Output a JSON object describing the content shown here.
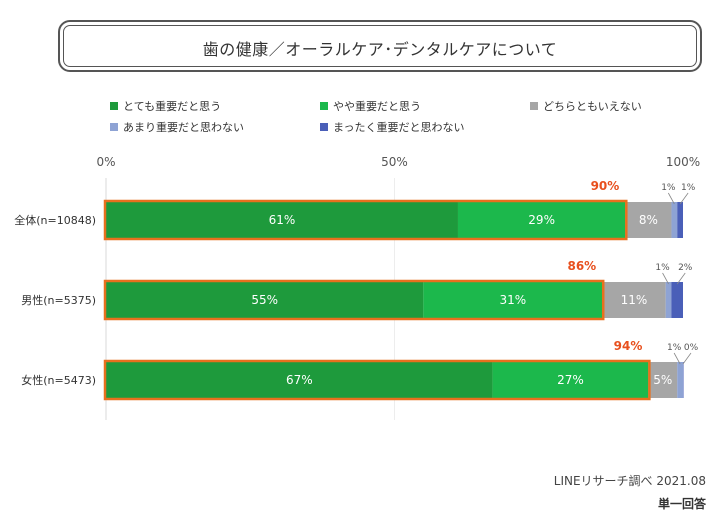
{
  "title": "歯の健康／オーラルケア･デンタルケアについて",
  "source": "LINEリサーチ調べ 2021.08",
  "note": "単一回答",
  "chart_data": {
    "type": "bar",
    "orientation": "horizontal",
    "stacked": true,
    "xlim": [
      0,
      100
    ],
    "x_ticks": [
      "0%",
      "50%",
      "100%"
    ],
    "categories": [
      "全体(n=10848)",
      "男性(n=5375)",
      "女性(n=5473)"
    ],
    "series": [
      {
        "name": "とても重要だと思う",
        "color": "#1e9a3c",
        "values": [
          61,
          55,
          67
        ],
        "labels": [
          "61%",
          "55%",
          "67%"
        ]
      },
      {
        "name": "やや重要だと思う",
        "color": "#1cb84c",
        "values": [
          29,
          31,
          27
        ],
        "labels": [
          "29%",
          "31%",
          "27%"
        ]
      },
      {
        "name": "どちらともいえない",
        "color": "#a6a6a6",
        "values": [
          8,
          11,
          5
        ],
        "labels": [
          "8%",
          "11%",
          "5%"
        ]
      },
      {
        "name": "あまり重要だと思わない",
        "color": "#8ea3d4",
        "values": [
          1,
          1,
          1
        ],
        "labels": [
          "1%",
          "1%",
          "1%"
        ]
      },
      {
        "name": "まったく重要だと思わない",
        "color": "#4a5fb8",
        "values": [
          1,
          2,
          0
        ],
        "labels": [
          "1%",
          "2%",
          "0%"
        ]
      }
    ],
    "totals": {
      "label_values": [
        "90%",
        "86%",
        "94%"
      ],
      "color": "#e8501e",
      "highlight_color": "#e8701e"
    },
    "legend_position": "top",
    "grid": false
  }
}
